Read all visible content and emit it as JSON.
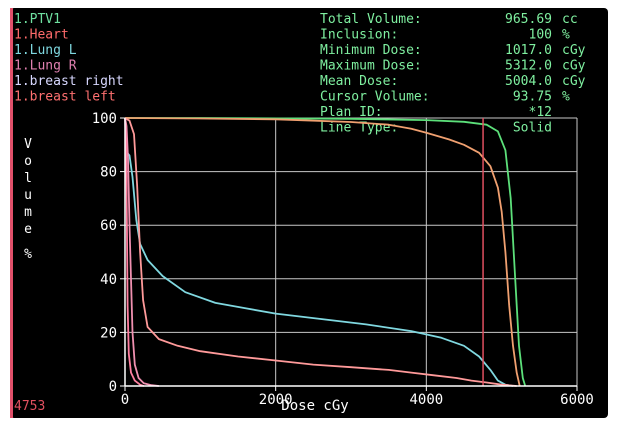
{
  "legend": [
    {
      "label": "1.PTV1",
      "color": "#6ee0a0"
    },
    {
      "label": "1.Heart",
      "color": "#ff6b6b"
    },
    {
      "label": "1.Lung L",
      "color": "#7fd8e0"
    },
    {
      "label": "1.Lung R",
      "color": "#e080b0"
    },
    {
      "label": "1.breast right",
      "color": "#d8d8ff"
    },
    {
      "label": "1.breast left",
      "color": "#ff7070"
    }
  ],
  "stats": [
    {
      "label": "Total Volume:",
      "value": "965.69",
      "unit": "cc"
    },
    {
      "label": "Inclusion:",
      "value": "100",
      "unit": "%"
    },
    {
      "label": "Minimum Dose:",
      "value": "1017.0",
      "unit": "cGy"
    },
    {
      "label": "Maximum Dose:",
      "value": "5312.0",
      "unit": "cGy"
    },
    {
      "label": "Mean Dose:",
      "value": "5004.0",
      "unit": "cGy"
    },
    {
      "label": "Cursor Volume:",
      "value": "93.75",
      "unit": "%"
    },
    {
      "label": "Plan ID:",
      "value": "*12",
      "unit": ""
    },
    {
      "label": "Line Type:",
      "value": "Solid",
      "unit": ""
    }
  ],
  "cursor_readout": "4753",
  "colors": {
    "text": "#7ff0a0",
    "grid": "#c8c8c8",
    "axis": "#ffffff",
    "cursor": "#e05060"
  },
  "chart_data": {
    "type": "line",
    "xlabel": "Dose cGy",
    "ylabel": "Volume %",
    "xlim": [
      0,
      6000
    ],
    "ylim": [
      0,
      100
    ],
    "x_ticks": [
      0,
      2000,
      4000,
      6000
    ],
    "y_ticks": [
      0,
      20,
      40,
      60,
      80,
      100
    ],
    "grid": true,
    "cursor_x": 4753,
    "series": [
      {
        "name": "1.PTV1",
        "color": "#5ce07a",
        "points": [
          [
            0,
            100
          ],
          [
            1000,
            100
          ],
          [
            3000,
            99.7
          ],
          [
            4000,
            99.2
          ],
          [
            4500,
            98.6
          ],
          [
            4800,
            97.5
          ],
          [
            4950,
            95
          ],
          [
            5050,
            88
          ],
          [
            5120,
            70
          ],
          [
            5180,
            40
          ],
          [
            5230,
            15
          ],
          [
            5280,
            3
          ],
          [
            5312,
            0
          ]
        ]
      },
      {
        "name": "1.Heart",
        "color": "#f0a070",
        "points": [
          [
            0,
            100
          ],
          [
            1000,
            99.8
          ],
          [
            2000,
            99.5
          ],
          [
            3000,
            98.5
          ],
          [
            3500,
            97.5
          ],
          [
            3800,
            96
          ],
          [
            4000,
            94.5
          ],
          [
            4300,
            92
          ],
          [
            4500,
            90
          ],
          [
            4700,
            87
          ],
          [
            4850,
            82
          ],
          [
            4950,
            74
          ],
          [
            5000,
            65
          ],
          [
            5050,
            50
          ],
          [
            5100,
            30
          ],
          [
            5150,
            15
          ],
          [
            5200,
            5
          ],
          [
            5240,
            0
          ]
        ]
      },
      {
        "name": "1.Lung L",
        "color": "#80d8e0",
        "points": [
          [
            0,
            88
          ],
          [
            60,
            86
          ],
          [
            100,
            78
          ],
          [
            150,
            62
          ],
          [
            200,
            53
          ],
          [
            300,
            47
          ],
          [
            500,
            41
          ],
          [
            800,
            35
          ],
          [
            1200,
            31
          ],
          [
            1600,
            29
          ],
          [
            2000,
            27
          ],
          [
            2600,
            25
          ],
          [
            3200,
            23
          ],
          [
            3800,
            20.5
          ],
          [
            4200,
            18
          ],
          [
            4500,
            15
          ],
          [
            4700,
            11
          ],
          [
            4850,
            6
          ],
          [
            4950,
            2
          ],
          [
            5050,
            0.5
          ],
          [
            5150,
            0
          ]
        ]
      },
      {
        "name": "1.Lung R",
        "color": "#f090b0",
        "points": [
          [
            0,
            100
          ],
          [
            20,
            97
          ],
          [
            40,
            85
          ],
          [
            60,
            60
          ],
          [
            80,
            40
          ],
          [
            100,
            20
          ],
          [
            130,
            8
          ],
          [
            180,
            3
          ],
          [
            250,
            1
          ],
          [
            350,
            0.3
          ],
          [
            450,
            0
          ]
        ]
      },
      {
        "name": "1.breast right",
        "color": "#ff7fa0",
        "points": [
          [
            0,
            100
          ],
          [
            15,
            90
          ],
          [
            25,
            60
          ],
          [
            35,
            30
          ],
          [
            50,
            12
          ],
          [
            80,
            5
          ],
          [
            130,
            2
          ],
          [
            200,
            0.5
          ],
          [
            250,
            0
          ]
        ]
      },
      {
        "name": "1.breast left",
        "color": "#ff9a9a",
        "points": [
          [
            0,
            100
          ],
          [
            60,
            99
          ],
          [
            120,
            94
          ],
          [
            160,
            75
          ],
          [
            200,
            50
          ],
          [
            240,
            32
          ],
          [
            300,
            22
          ],
          [
            450,
            17.5
          ],
          [
            700,
            15
          ],
          [
            1000,
            13
          ],
          [
            1500,
            11
          ],
          [
            2000,
            9.5
          ],
          [
            2500,
            8
          ],
          [
            3000,
            7
          ],
          [
            3500,
            6
          ],
          [
            3800,
            5
          ],
          [
            4100,
            4
          ],
          [
            4400,
            3
          ],
          [
            4600,
            2
          ],
          [
            4800,
            1.3
          ],
          [
            5000,
            0.5
          ],
          [
            5200,
            0
          ]
        ]
      }
    ]
  }
}
